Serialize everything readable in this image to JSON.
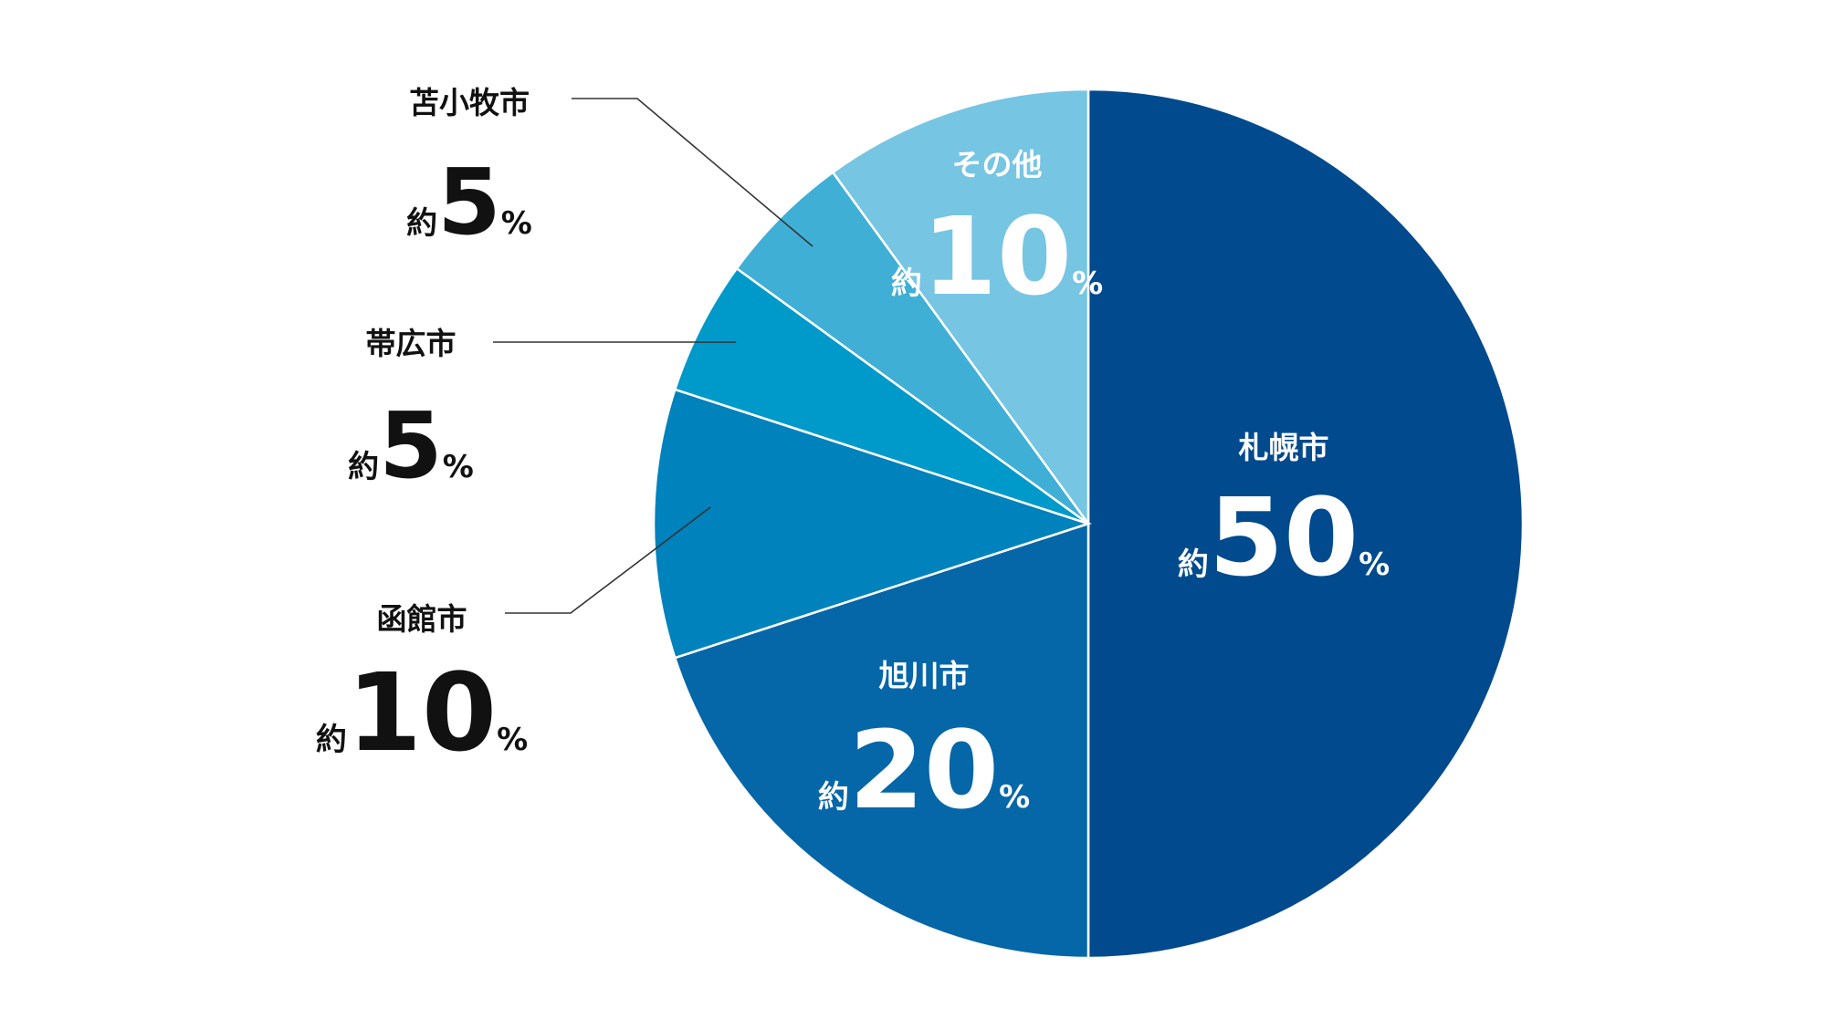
{
  "chart_data": {
    "type": "pie",
    "title": "",
    "prefix": "約",
    "unit": "%",
    "start": "top",
    "direction": "clockwise",
    "slices": [
      {
        "label": "札幌市",
        "value": 50,
        "display": "50",
        "color": "#004A8D",
        "text_color": "#FFFFFF",
        "label_position": "inside"
      },
      {
        "label": "旭川市",
        "value": 20,
        "display": "20",
        "color": "#0566A8",
        "text_color": "#FFFFFF",
        "label_position": "inside"
      },
      {
        "label": "函館市",
        "value": 10,
        "display": "10",
        "color": "#0082BC",
        "text_color": "#111111",
        "label_position": "outside-left"
      },
      {
        "label": "帯広市",
        "value": 5,
        "display": "5",
        "color": "#009ACA",
        "text_color": "#111111",
        "label_position": "outside-left"
      },
      {
        "label": "苫小牧市",
        "value": 5,
        "display": "5",
        "color": "#40AFD6",
        "text_color": "#111111",
        "label_position": "outside-left"
      },
      {
        "label": "その他",
        "value": 10,
        "display": "10",
        "color": "#76C5E2",
        "text_color": "#FFFFFF",
        "label_position": "inside"
      }
    ]
  }
}
